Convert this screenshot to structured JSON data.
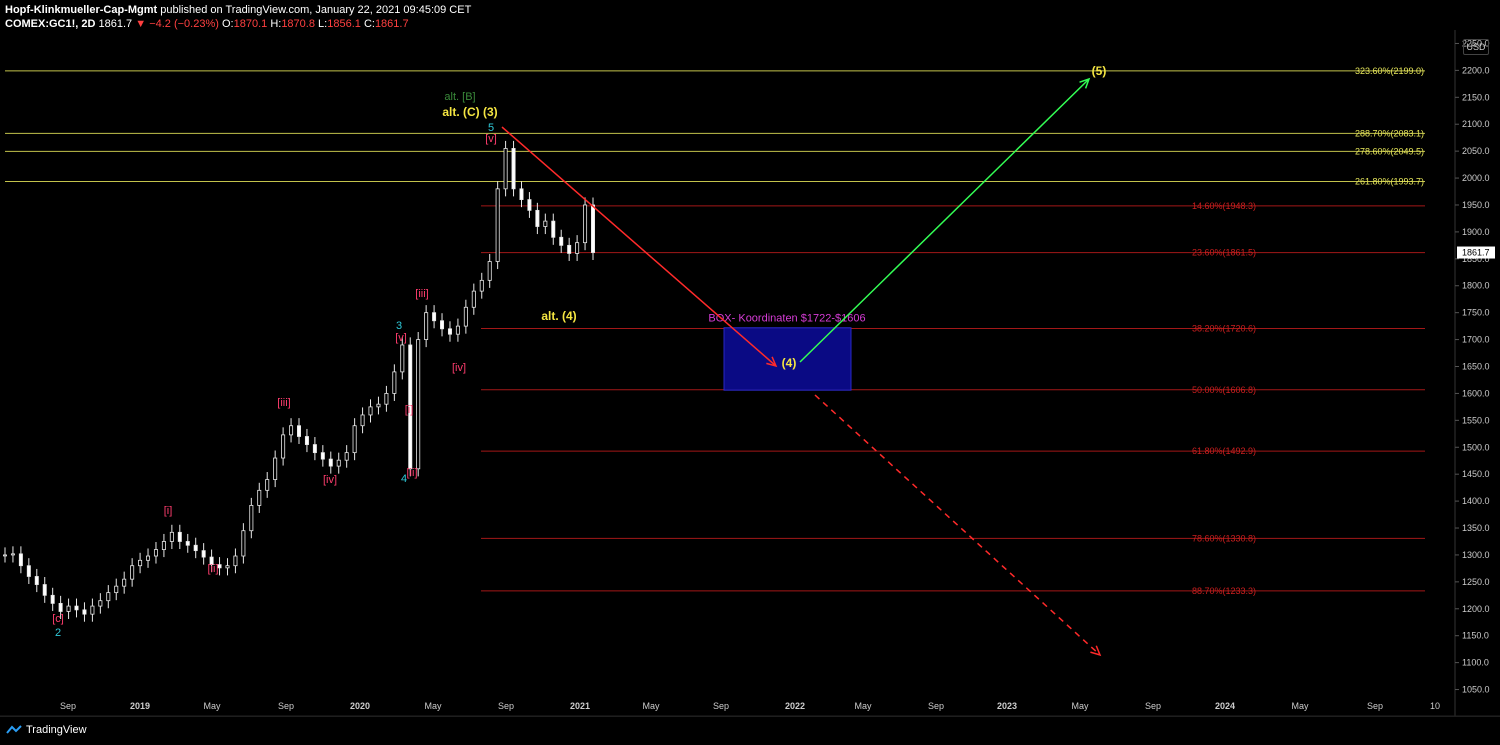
{
  "header": {
    "publisher": "Hopf-Klinkmueller-Cap-Mgmt",
    "published_text": "published on TradingView.com, January 22, 2021 09:45:09 CET",
    "symbol": "COMEX:GC1!, 2D",
    "last": "1861.7",
    "change": "▼ −4.2 (−0.23%)",
    "o_label": "O:",
    "o_value": "1870.1",
    "h_label": "H:",
    "h_value": "1870.8",
    "l_label": "L:",
    "l_value": "1856.1",
    "c_label": "C:",
    "c_value": "1861.7"
  },
  "currency_button": "USD",
  "footer": {
    "brand": "TradingView"
  },
  "colors": {
    "fib_red": "#cc1f1f",
    "fib_yellow": "#e6e65a",
    "box": "#0b0b8c",
    "up_arrow": "#33ff55",
    "down_arrow": "#ff2a2a",
    "wave_pink": "#ff3d6e",
    "wave_cyan": "#2fc9d9",
    "wave_yellow": "#f5e642",
    "wave_green": "#3a8a3a",
    "box_label": "#d63cd6"
  },
  "chart_data": {
    "type": "line",
    "symbol": "COMEX:GC1!",
    "interval": "2D",
    "y_axis_ticks": [
      1050,
      1100,
      1150,
      1200,
      1250,
      1300,
      1350,
      1400,
      1450,
      1500,
      1550,
      1600,
      1650,
      1700,
      1750,
      1800,
      1850,
      1900,
      1950,
      2000,
      2050,
      2100,
      2150,
      2200,
      2250
    ],
    "y_range": [
      1025,
      2275
    ],
    "last_price_label": "1861.7",
    "x_axis_ticks": [
      "Sep",
      "2019",
      "May",
      "Sep",
      "2020",
      "May",
      "Sep",
      "2021",
      "May",
      "Sep",
      "2022",
      "May",
      "Sep",
      "2023",
      "May",
      "Sep",
      "2024",
      "May",
      "Sep",
      "10"
    ],
    "price_series": {
      "name": "",
      "x_index": [
        0,
        4,
        8,
        12,
        16,
        20,
        24,
        28,
        32,
        36,
        40,
        44,
        48,
        52,
        56,
        60,
        64,
        68,
        72,
        76,
        80,
        84,
        88,
        92,
        96,
        100,
        104,
        108,
        112,
        116,
        120,
        124,
        128,
        132,
        136,
        140,
        144,
        148,
        152,
        156,
        160,
        164,
        168,
        172,
        176,
        180,
        184,
        188,
        192,
        196,
        200,
        204,
        208,
        212,
        216,
        220,
        224,
        228,
        232,
        236,
        240,
        244,
        248,
        252,
        256,
        260,
        264,
        268,
        272,
        276,
        280,
        284,
        288,
        292,
        296
      ],
      "close": [
        1300,
        1302,
        1280,
        1260,
        1245,
        1225,
        1210,
        1195,
        1205,
        1198,
        1190,
        1205,
        1215,
        1230,
        1242,
        1255,
        1280,
        1290,
        1298,
        1310,
        1325,
        1342,
        1325,
        1318,
        1308,
        1296,
        1282,
        1276,
        1280,
        1298,
        1345,
        1392,
        1420,
        1440,
        1480,
        1523,
        1540,
        1520,
        1505,
        1490,
        1478,
        1465,
        1476,
        1490,
        1540,
        1560,
        1575,
        1580,
        1600,
        1640,
        1690,
        1460,
        1700,
        1750,
        1735,
        1720,
        1710,
        1725,
        1760,
        1790,
        1810,
        1845,
        1980,
        2055,
        1980,
        1960,
        1940,
        1910,
        1920,
        1890,
        1875,
        1860,
        1880,
        1950,
        1861.7
      ]
    },
    "fib_levels": [
      {
        "label": "323.60%(2199.0)",
        "value": 2199.0,
        "color": "yellow"
      },
      {
        "label": "288.70%(2083.1)",
        "value": 2083.1,
        "color": "yellow"
      },
      {
        "label": "278.60%(2049.5)",
        "value": 2049.5,
        "color": "yellow"
      },
      {
        "label": "261.80%(1993.7)",
        "value": 1993.7,
        "color": "yellow"
      },
      {
        "label": "14.60%(1948.3)",
        "value": 1948.3,
        "color": "red"
      },
      {
        "label": "23.60%(1861.5)",
        "value": 1861.5,
        "color": "red"
      },
      {
        "label": "38.20%(1720.6)",
        "value": 1720.6,
        "color": "red"
      },
      {
        "label": "50.00%(1606.8)",
        "value": 1606.8,
        "color": "red"
      },
      {
        "label": "61.80%(1492.9)",
        "value": 1492.9,
        "color": "red"
      },
      {
        "label": "78.60%(1330.8)",
        "value": 1330.8,
        "color": "red"
      },
      {
        "label": "88.70%(1233.3)",
        "value": 1233.3,
        "color": "red"
      }
    ],
    "box": {
      "label": "BOX- Koordinaten $1722-$1606",
      "top": 1722,
      "bottom": 1606
    },
    "wave_labels": [
      {
        "text": "[c]",
        "color": "pink"
      },
      {
        "text": "2",
        "color": "cyan"
      },
      {
        "text": "[i]",
        "color": "pink"
      },
      {
        "text": "[ii]",
        "color": "pink"
      },
      {
        "text": "[iii]",
        "color": "pink"
      },
      {
        "text": "[iv]",
        "color": "pink"
      },
      {
        "text": "3",
        "color": "cyan"
      },
      {
        "text": "[v]",
        "color": "pink"
      },
      {
        "text": "[i]",
        "color": "pink"
      },
      {
        "text": "[ii]",
        "color": "pink"
      },
      {
        "text": "4",
        "color": "cyan"
      },
      {
        "text": "[iii]",
        "color": "pink"
      },
      {
        "text": "[iv]",
        "color": "pink"
      },
      {
        "text": "alt. [B]",
        "color": "green"
      },
      {
        "text": "alt. (C) (3)",
        "color": "yellow"
      },
      {
        "text": "5",
        "color": "cyan"
      },
      {
        "text": "[v]",
        "color": "pink"
      },
      {
        "text": "alt. (4)",
        "color": "yellow"
      },
      {
        "text": "(4)",
        "color": "yellow"
      },
      {
        "text": "(5)",
        "color": "yellow"
      }
    ]
  }
}
